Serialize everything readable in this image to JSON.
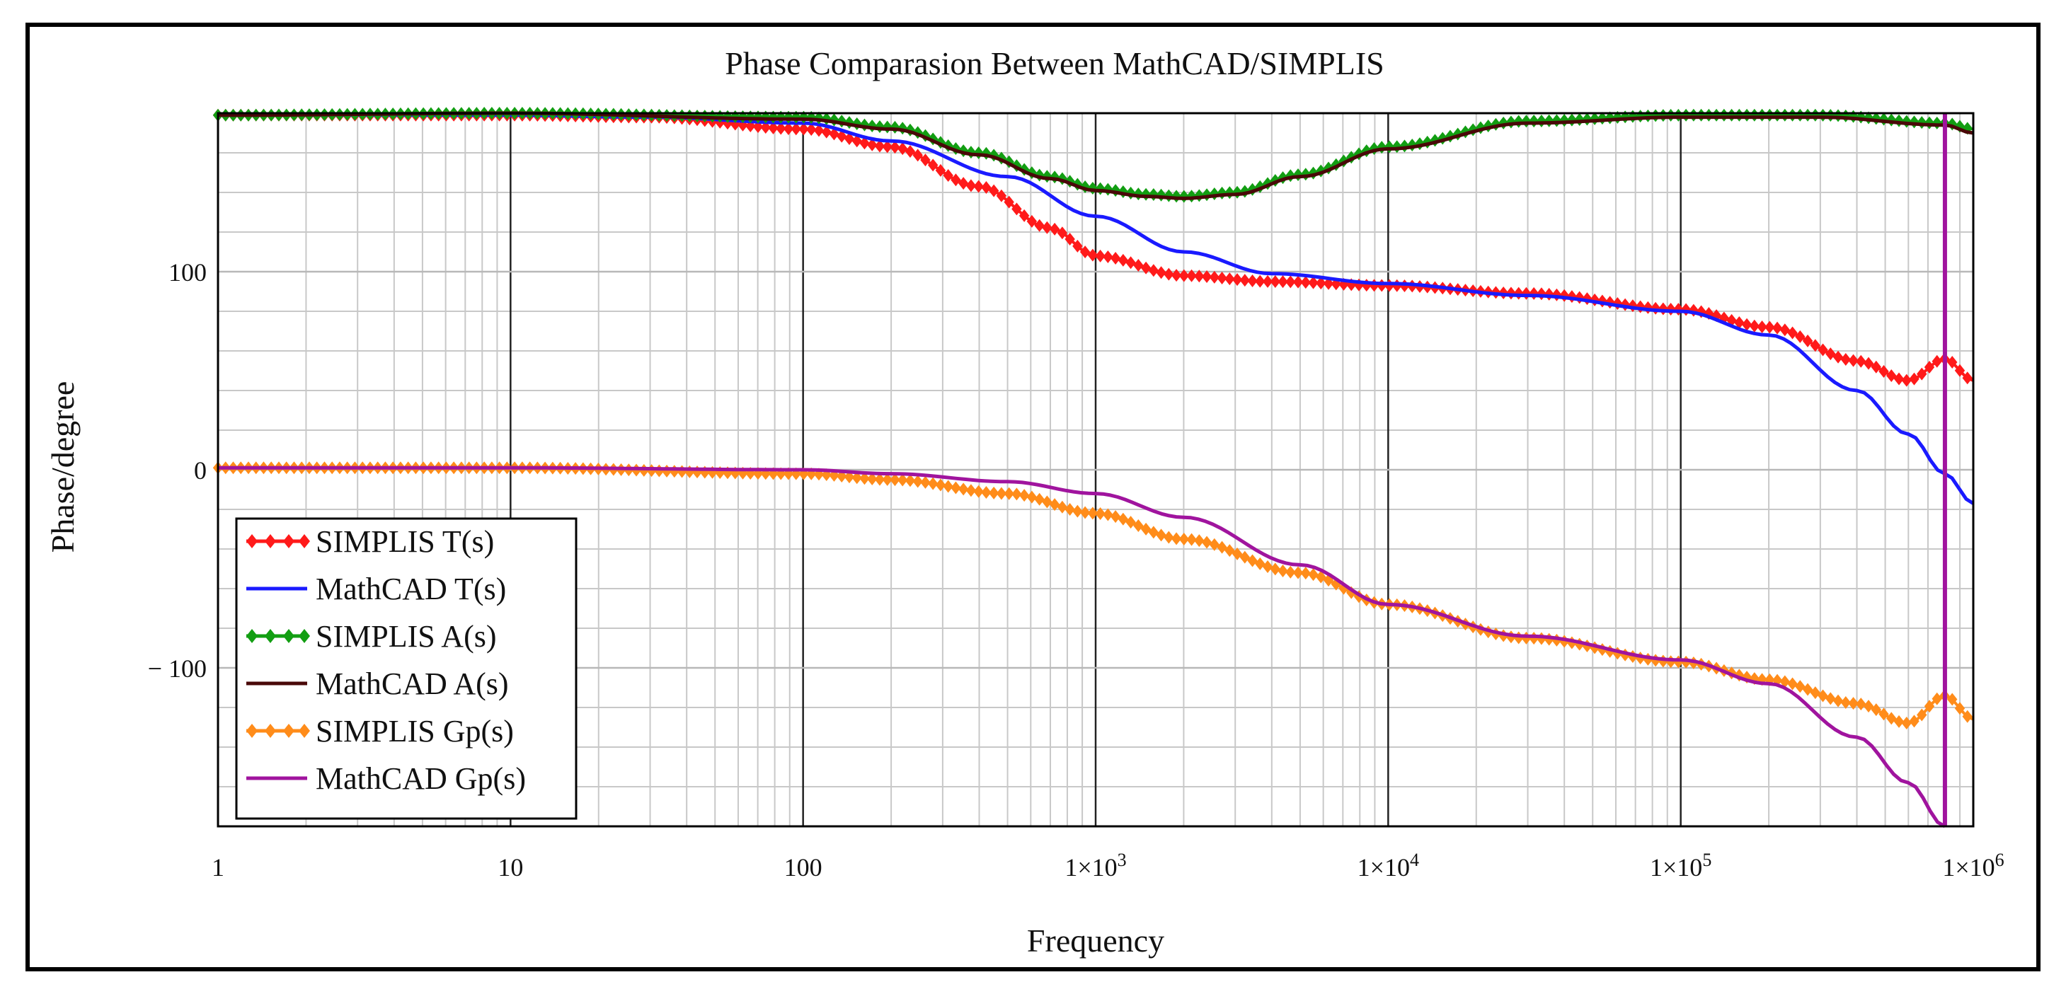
{
  "chart_data": {
    "type": "line",
    "title": "Phase Comparasion Between MathCAD/SIMPLIS",
    "xlabel": "Frequency",
    "ylabel": "Phase/degree",
    "xscale": "log",
    "xlim": [
      1,
      1000000
    ],
    "ylim": [
      -180,
      180
    ],
    "grid": true,
    "legend_position": "bottom-left",
    "x_ticks": [
      {
        "value": 1,
        "label": "1"
      },
      {
        "value": 10,
        "label": "10"
      },
      {
        "value": 100,
        "label": "100"
      },
      {
        "value": 1000,
        "base": "1×10",
        "exp": "3"
      },
      {
        "value": 10000,
        "base": "1×10",
        "exp": "4"
      },
      {
        "value": 100000,
        "base": "1×10",
        "exp": "5"
      },
      {
        "value": 1000000,
        "base": "1×10",
        "exp": "6"
      }
    ],
    "y_ticks": [
      {
        "value": 100,
        "label": "100"
      },
      {
        "value": 0,
        "label": "0"
      },
      {
        "value": -100,
        "label": "− 100"
      }
    ],
    "series": [
      {
        "name": "SIMPLIS T(s)",
        "color": "#ff1a1a",
        "marker": "diamond",
        "x": [
          1,
          10,
          30,
          100,
          200,
          400,
          700,
          1000,
          2000,
          4000,
          10000,
          30000,
          100000,
          200000,
          400000,
          600000,
          800000,
          1000000
        ],
        "y": [
          179,
          179,
          178,
          172,
          163,
          143,
          122,
          108,
          98,
          95,
          93,
          89,
          81,
          72,
          55,
          45,
          56,
          45
        ]
      },
      {
        "name": "MathCAD T(s)",
        "color": "#1a1aff",
        "marker": "none",
        "x": [
          1,
          10,
          30,
          100,
          200,
          500,
          1000,
          2000,
          4000,
          10000,
          30000,
          100000,
          200000,
          400000,
          600000,
          800000,
          1000000
        ],
        "y": [
          179,
          179,
          178,
          175,
          166,
          148,
          128,
          110,
          99,
          94,
          88,
          80,
          68,
          40,
          18,
          -2,
          -17
        ]
      },
      {
        "name": "SIMPLIS A(s)",
        "color": "#129e12",
        "marker": "diamond",
        "x": [
          1,
          10,
          100,
          200,
          400,
          700,
          1000,
          1500,
          2000,
          3000,
          5000,
          10000,
          30000,
          100000,
          300000,
          800000,
          1000000
        ],
        "y": [
          179,
          180,
          178,
          173,
          160,
          148,
          142,
          139,
          138,
          140,
          149,
          163,
          176,
          179,
          179,
          175,
          172
        ]
      },
      {
        "name": "MathCAD A(s)",
        "color": "#4a0808",
        "marker": "none",
        "x": [
          1,
          10,
          100,
          200,
          400,
          700,
          1000,
          1500,
          2000,
          3000,
          5000,
          10000,
          30000,
          100000,
          300000,
          800000,
          1000000
        ],
        "y": [
          179,
          180,
          177,
          172,
          159,
          147,
          141,
          138,
          137,
          139,
          148,
          162,
          175,
          178,
          178,
          174,
          170
        ]
      },
      {
        "name": "SIMPLIS Gp(s)",
        "color": "#ff8c1a",
        "marker": "diamond",
        "x": [
          1,
          10,
          100,
          200,
          500,
          1000,
          2000,
          5000,
          10000,
          30000,
          100000,
          200000,
          400000,
          600000,
          800000,
          1000000
        ],
        "y": [
          1,
          1,
          -2,
          -5,
          -12,
          -22,
          -35,
          -52,
          -68,
          -85,
          -97,
          -106,
          -118,
          -128,
          -114,
          -126
        ]
      },
      {
        "name": "MathCAD Gp(s)",
        "color": "#a0149e",
        "marker": "none",
        "x": [
          1,
          10,
          100,
          200,
          500,
          1000,
          2000,
          5000,
          10000,
          30000,
          100000,
          200000,
          400000,
          600000,
          800000
        ],
        "y": [
          1,
          1,
          0,
          -2,
          -6,
          -12,
          -24,
          -48,
          -68,
          -84,
          -96,
          -108,
          -135,
          -158,
          -180
        ]
      }
    ],
    "annotations": [
      {
        "type": "vertical_line",
        "x": 800000,
        "color": "#a0149e",
        "from": -180,
        "to": 180
      }
    ]
  }
}
